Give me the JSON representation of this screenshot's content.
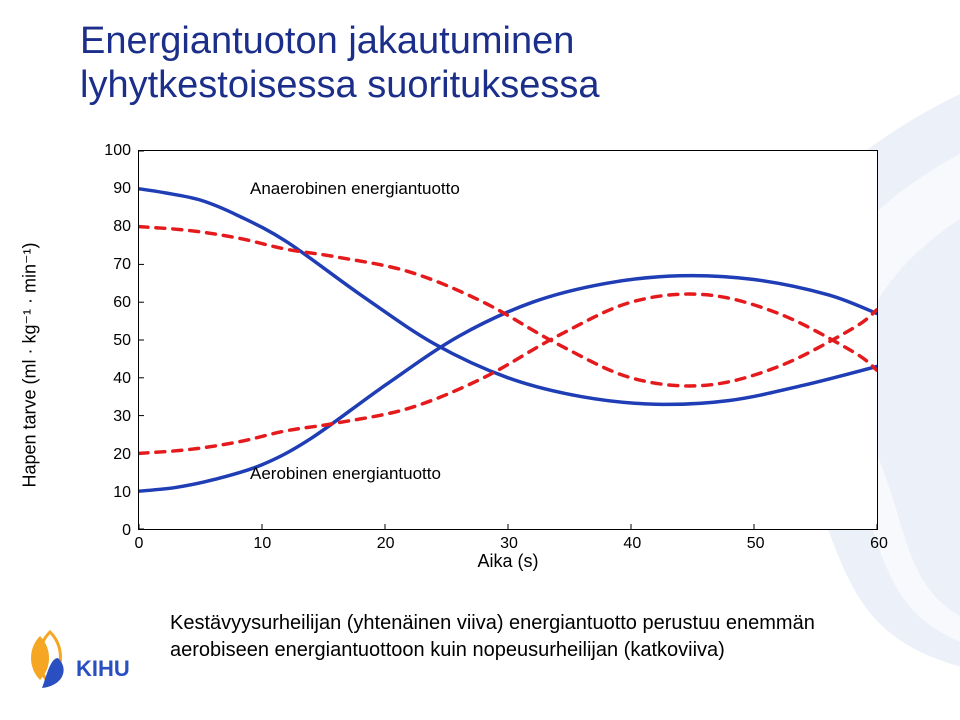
{
  "title_line1": "Energiantuoton jakautuminen",
  "title_line2": "lyhytkestoisessa suorituksessa",
  "title_color": "#1b2e8a",
  "title_fontsize": 38,
  "chart": {
    "type": "line",
    "ylabel": "Hapen tarve (ml · kg⁻¹ · min⁻¹)",
    "xlabel": "Aika (s)",
    "label_fontsize": 18,
    "xlim": [
      0,
      60
    ],
    "ylim": [
      0,
      100
    ],
    "xticks": [
      0,
      10,
      20,
      30,
      40,
      50,
      60
    ],
    "yticks": [
      0,
      10,
      20,
      30,
      40,
      50,
      60,
      70,
      80,
      90,
      100
    ],
    "tick_fontsize": 16,
    "background_color": "#ffffff",
    "border_color": "#000000",
    "grid_on": false,
    "series": [
      {
        "name": "anaerobic_solid",
        "label": "Anaerobinen energiantuotto",
        "label_x": 9,
        "label_y": 90,
        "color": "#1f3db5",
        "width": 3.5,
        "dash": "none",
        "x": [
          0,
          2,
          5,
          8,
          12,
          18,
          24,
          30,
          36,
          42,
          48,
          54,
          60
        ],
        "y": [
          90,
          89,
          87,
          83,
          76,
          62,
          49,
          40,
          35,
          33,
          34,
          38,
          43
        ]
      },
      {
        "name": "aerobic_solid",
        "label": "Aerobinen energiantuotto",
        "label_x": 9,
        "label_y": 15,
        "color": "#1f3db5",
        "width": 3.5,
        "dash": "none",
        "x": [
          0,
          3,
          6,
          10,
          14,
          20,
          26,
          32,
          38,
          44,
          50,
          56,
          60
        ],
        "y": [
          10,
          11,
          13,
          17,
          24,
          38,
          51,
          60,
          65,
          67,
          66,
          62,
          57
        ]
      },
      {
        "name": "anaerobic_dashed",
        "color": "#e41a1c",
        "width": 3.5,
        "dash": "9,8",
        "x": [
          0,
          4,
          8,
          12,
          16,
          22,
          28,
          34,
          40,
          46,
          52,
          58,
          60
        ],
        "y": [
          80,
          79,
          77,
          74,
          72,
          68,
          60,
          49,
          40,
          38,
          43,
          53,
          58
        ]
      },
      {
        "name": "aerobic_dashed",
        "color": "#e41a1c",
        "width": 3.5,
        "dash": "9,8",
        "x": [
          0,
          4,
          8,
          12,
          16,
          22,
          28,
          34,
          40,
          46,
          52,
          58,
          60
        ],
        "y": [
          20,
          21,
          23,
          26,
          28,
          32,
          40,
          51,
          60,
          62,
          57,
          47,
          42
        ]
      }
    ]
  },
  "caption": "Kestävyysurheilijan (yhtenäinen viiva) energiantuotto perustuu enemmän aerobiseen energiantuottoon kuin nopeusurheilijan (katkoviiva)",
  "caption_fontsize": 20,
  "caption_color": "#000000",
  "logo_text": "KIHU",
  "swoosh_color": "#c9d8f0"
}
